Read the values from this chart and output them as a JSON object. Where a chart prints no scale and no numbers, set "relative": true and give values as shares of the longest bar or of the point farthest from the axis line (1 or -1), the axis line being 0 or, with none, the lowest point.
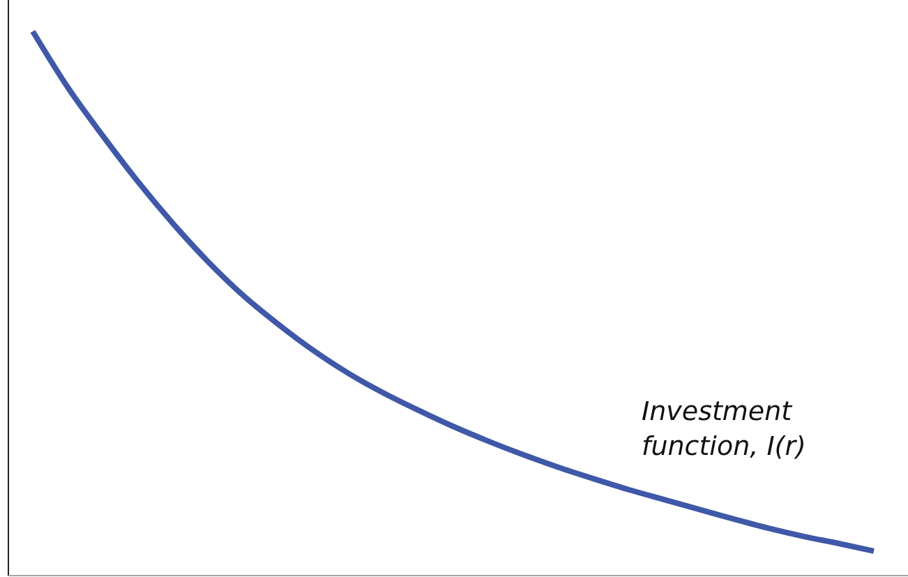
{
  "chart_data": {
    "type": "line",
    "relative": true,
    "categories": [
      null,
      null,
      null,
      null,
      null,
      null,
      null,
      null,
      null,
      null,
      null,
      null,
      null,
      null,
      null,
      null,
      null,
      null,
      null,
      null,
      null,
      null,
      null,
      null,
      null
    ],
    "series": [
      {
        "color": "#3f58a8",
        "values": [
          1.0,
          0.897,
          0.808,
          0.724,
          0.647,
          0.577,
          0.515,
          0.462,
          0.414,
          0.372,
          0.336,
          0.304,
          0.274,
          0.247,
          0.222,
          0.199,
          0.178,
          0.158,
          0.14,
          0.122,
          0.104,
          0.087,
          0.072,
          0.059,
          0.045
        ]
      }
    ],
    "annotations": [
      "Investment function, I(r)"
    ],
    "marker": "none",
    "line_style": "solid"
  }
}
